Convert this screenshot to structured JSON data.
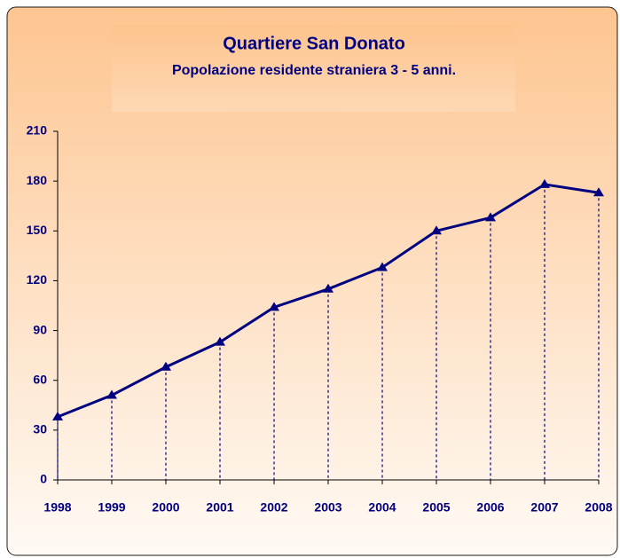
{
  "chart_data": {
    "type": "line",
    "title": "Quartiere San Donato",
    "subtitle": "Popolazione residente straniera 3 - 5 anni.",
    "categories": [
      "1998",
      "1999",
      "2000",
      "2001",
      "2002",
      "2003",
      "2004",
      "2005",
      "2006",
      "2007",
      "2008"
    ],
    "series": [
      {
        "color": "#000080",
        "values": [
          38,
          51,
          68,
          83,
          104,
          115,
          128,
          150,
          158,
          178,
          173
        ]
      }
    ],
    "ylim": [
      0,
      210
    ],
    "yticks": [
      0,
      30,
      60,
      90,
      120,
      150,
      180,
      210
    ],
    "drop_lines": true
  }
}
